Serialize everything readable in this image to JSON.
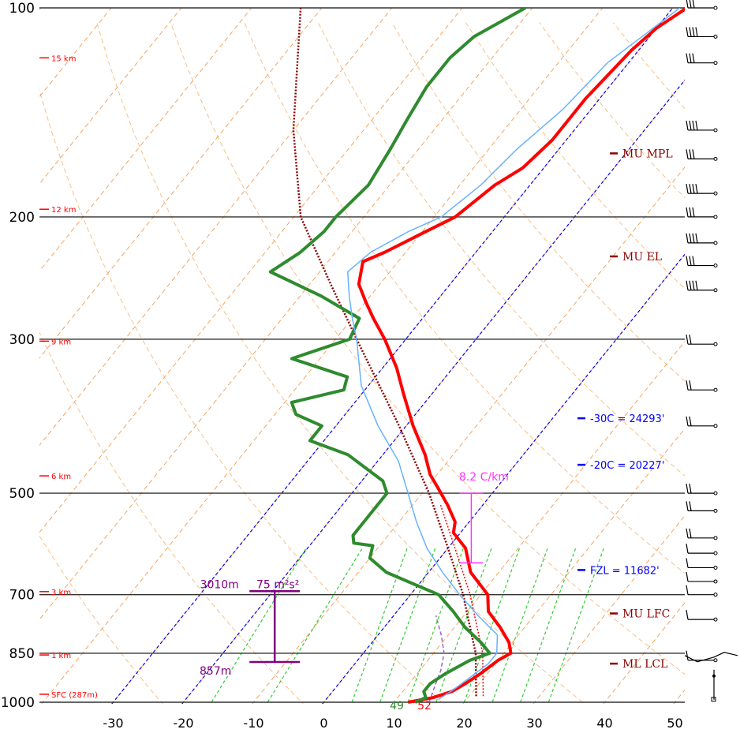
{
  "chart_data": {
    "type": "line",
    "subtype": "skew-t log-p sounding",
    "y_axis": {
      "scale": "log",
      "ticks": [
        "100",
        "200",
        "300",
        "500",
        "700",
        "850",
        "1000"
      ],
      "range_hPa": [
        100,
        1000
      ]
    },
    "x_axis": {
      "ticks": [
        "-30",
        "-20",
        "-10",
        "0",
        "10",
        "20",
        "30",
        "40",
        "50"
      ],
      "range_C": [
        -39,
        51
      ]
    },
    "height_labels": [
      {
        "text": "15 km",
        "p": 118
      },
      {
        "text": "12 km",
        "p": 195
      },
      {
        "text": "9 km",
        "p": 302
      },
      {
        "text": "6 km",
        "p": 472
      },
      {
        "text": "3 km",
        "p": 693
      },
      {
        "text": "1 km",
        "p": 855
      },
      {
        "text": "SFC (287m)",
        "p": 974
      }
    ],
    "series": [
      {
        "color": "#ff0000",
        "points": [
          [
            1000,
            12
          ],
          [
            985,
            15
          ],
          [
            965,
            17
          ],
          [
            940,
            18
          ],
          [
            910,
            19
          ],
          [
            870,
            20
          ],
          [
            850,
            21
          ],
          [
            820,
            19.5
          ],
          [
            780,
            16.5
          ],
          [
            740,
            13
          ],
          [
            700,
            11
          ],
          [
            650,
            6
          ],
          [
            600,
            2.5
          ],
          [
            570,
            -1
          ],
          [
            550,
            -2
          ],
          [
            520,
            -5
          ],
          [
            490,
            -8.5
          ],
          [
            470,
            -11
          ],
          [
            440,
            -14
          ],
          [
            400,
            -19
          ],
          [
            360,
            -24
          ],
          [
            330,
            -28
          ],
          [
            300,
            -33
          ],
          [
            280,
            -37
          ],
          [
            265,
            -40
          ],
          [
            250,
            -43
          ],
          [
            232,
            -45
          ],
          [
            225,
            -43
          ],
          [
            212,
            -40
          ],
          [
            200,
            -37
          ],
          [
            180,
            -35
          ],
          [
            170,
            -33
          ],
          [
            155,
            -32
          ],
          [
            135,
            -32
          ],
          [
            115,
            -31
          ],
          [
            107,
            -30
          ],
          [
            100,
            -28
          ]
        ]
      },
      {
        "color": "#2e8b2e",
        "points": [
          [
            1000,
            13
          ],
          [
            985,
            14
          ],
          [
            965,
            13
          ],
          [
            940,
            13
          ],
          [
            910,
            14
          ],
          [
            870,
            16
          ],
          [
            850,
            18
          ],
          [
            820,
            15.5
          ],
          [
            780,
            11.5
          ],
          [
            740,
            8
          ],
          [
            700,
            4
          ],
          [
            650,
            -6
          ],
          [
            620,
            -10
          ],
          [
            595,
            -11
          ],
          [
            590,
            -14
          ],
          [
            575,
            -15
          ],
          [
            550,
            -15
          ],
          [
            500,
            -15
          ],
          [
            480,
            -17
          ],
          [
            440,
            -25
          ],
          [
            420,
            -32
          ],
          [
            400,
            -32
          ],
          [
            385,
            -37
          ],
          [
            370,
            -39
          ],
          [
            355,
            -33
          ],
          [
            340,
            -34
          ],
          [
            320,
            -44
          ],
          [
            300,
            -38
          ],
          [
            280,
            -39
          ],
          [
            260,
            -47
          ],
          [
            240,
            -57
          ],
          [
            225,
            -55
          ],
          [
            210,
            -54
          ],
          [
            200,
            -54
          ],
          [
            180,
            -53
          ],
          [
            160,
            -54
          ],
          [
            145,
            -55
          ],
          [
            130,
            -56
          ],
          [
            118,
            -56
          ],
          [
            110,
            -55
          ],
          [
            100,
            -51
          ]
        ]
      },
      {
        "color": "#66b3ff",
        "points": [
          [
            990,
            16
          ],
          [
            960,
            17
          ],
          [
            920,
            18
          ],
          [
            880,
            19
          ],
          [
            850,
            19
          ],
          [
            800,
            17
          ],
          [
            750,
            12
          ],
          [
            700,
            7
          ],
          [
            650,
            2
          ],
          [
            600,
            -3
          ],
          [
            550,
            -7.5
          ],
          [
            500,
            -12
          ],
          [
            450,
            -17
          ],
          [
            400,
            -24
          ],
          [
            350,
            -31
          ],
          [
            300,
            -37
          ],
          [
            280,
            -40
          ],
          [
            260,
            -43
          ],
          [
            240,
            -46
          ],
          [
            225,
            -45
          ],
          [
            210,
            -42
          ],
          [
            200,
            -39
          ],
          [
            180,
            -37
          ],
          [
            160,
            -36
          ],
          [
            140,
            -34
          ],
          [
            120,
            -33
          ],
          [
            100,
            -29
          ]
        ]
      }
    ],
    "parcel_color": "#8b0000",
    "moist_adiabats_C": [
      0,
      5,
      10,
      15,
      20,
      25,
      30,
      35
    ],
    "dry_adiabats_K": [
      230,
      250,
      270,
      290,
      310,
      330,
      350,
      370,
      390,
      410,
      430,
      450,
      470,
      490
    ],
    "mixing_ratio_lines": [
      -16,
      -8,
      4,
      8,
      12,
      16,
      20,
      24,
      28,
      32
    ],
    "isotherm_lines_blue": [
      0,
      -20,
      -30
    ],
    "level_labels": [
      {
        "text": "MU MPL",
        "p": 162,
        "color": "#8b0000"
      },
      {
        "text": "MU EL",
        "p": 228,
        "color": "#8b0000"
      },
      {
        "text": "-30C = 24293'",
        "p": 390,
        "color": "#0000ff"
      },
      {
        "text": "-20C = 20227'",
        "p": 455,
        "color": "#0000ff"
      },
      {
        "text": "FZL = 11682'",
        "p": 645,
        "color": "#0000ff"
      },
      {
        "text": "MU LFC",
        "p": 745,
        "color": "#8b0000"
      },
      {
        "text": "ML LCL",
        "p": 880,
        "color": "#8b0000"
      }
    ],
    "lapse_rate": {
      "text": "8.2 C/km",
      "p_top": 500,
      "p_bottom": 630,
      "x_C": 21
    },
    "effective_inflow": {
      "top_text": "3010m",
      "srh_text": "75 m²s²",
      "bottom_text": "857m",
      "p_top": 692,
      "p_bottom": 875,
      "x_C": -7
    },
    "surface_labels": {
      "dewpoint": "49",
      "temperature": "52"
    },
    "wind_barb_levels": [
      100,
      110,
      120,
      150,
      165,
      185,
      200,
      218,
      235,
      255,
      305,
      355,
      400,
      500,
      530,
      580,
      610,
      640,
      670,
      700,
      760,
      870
    ]
  }
}
